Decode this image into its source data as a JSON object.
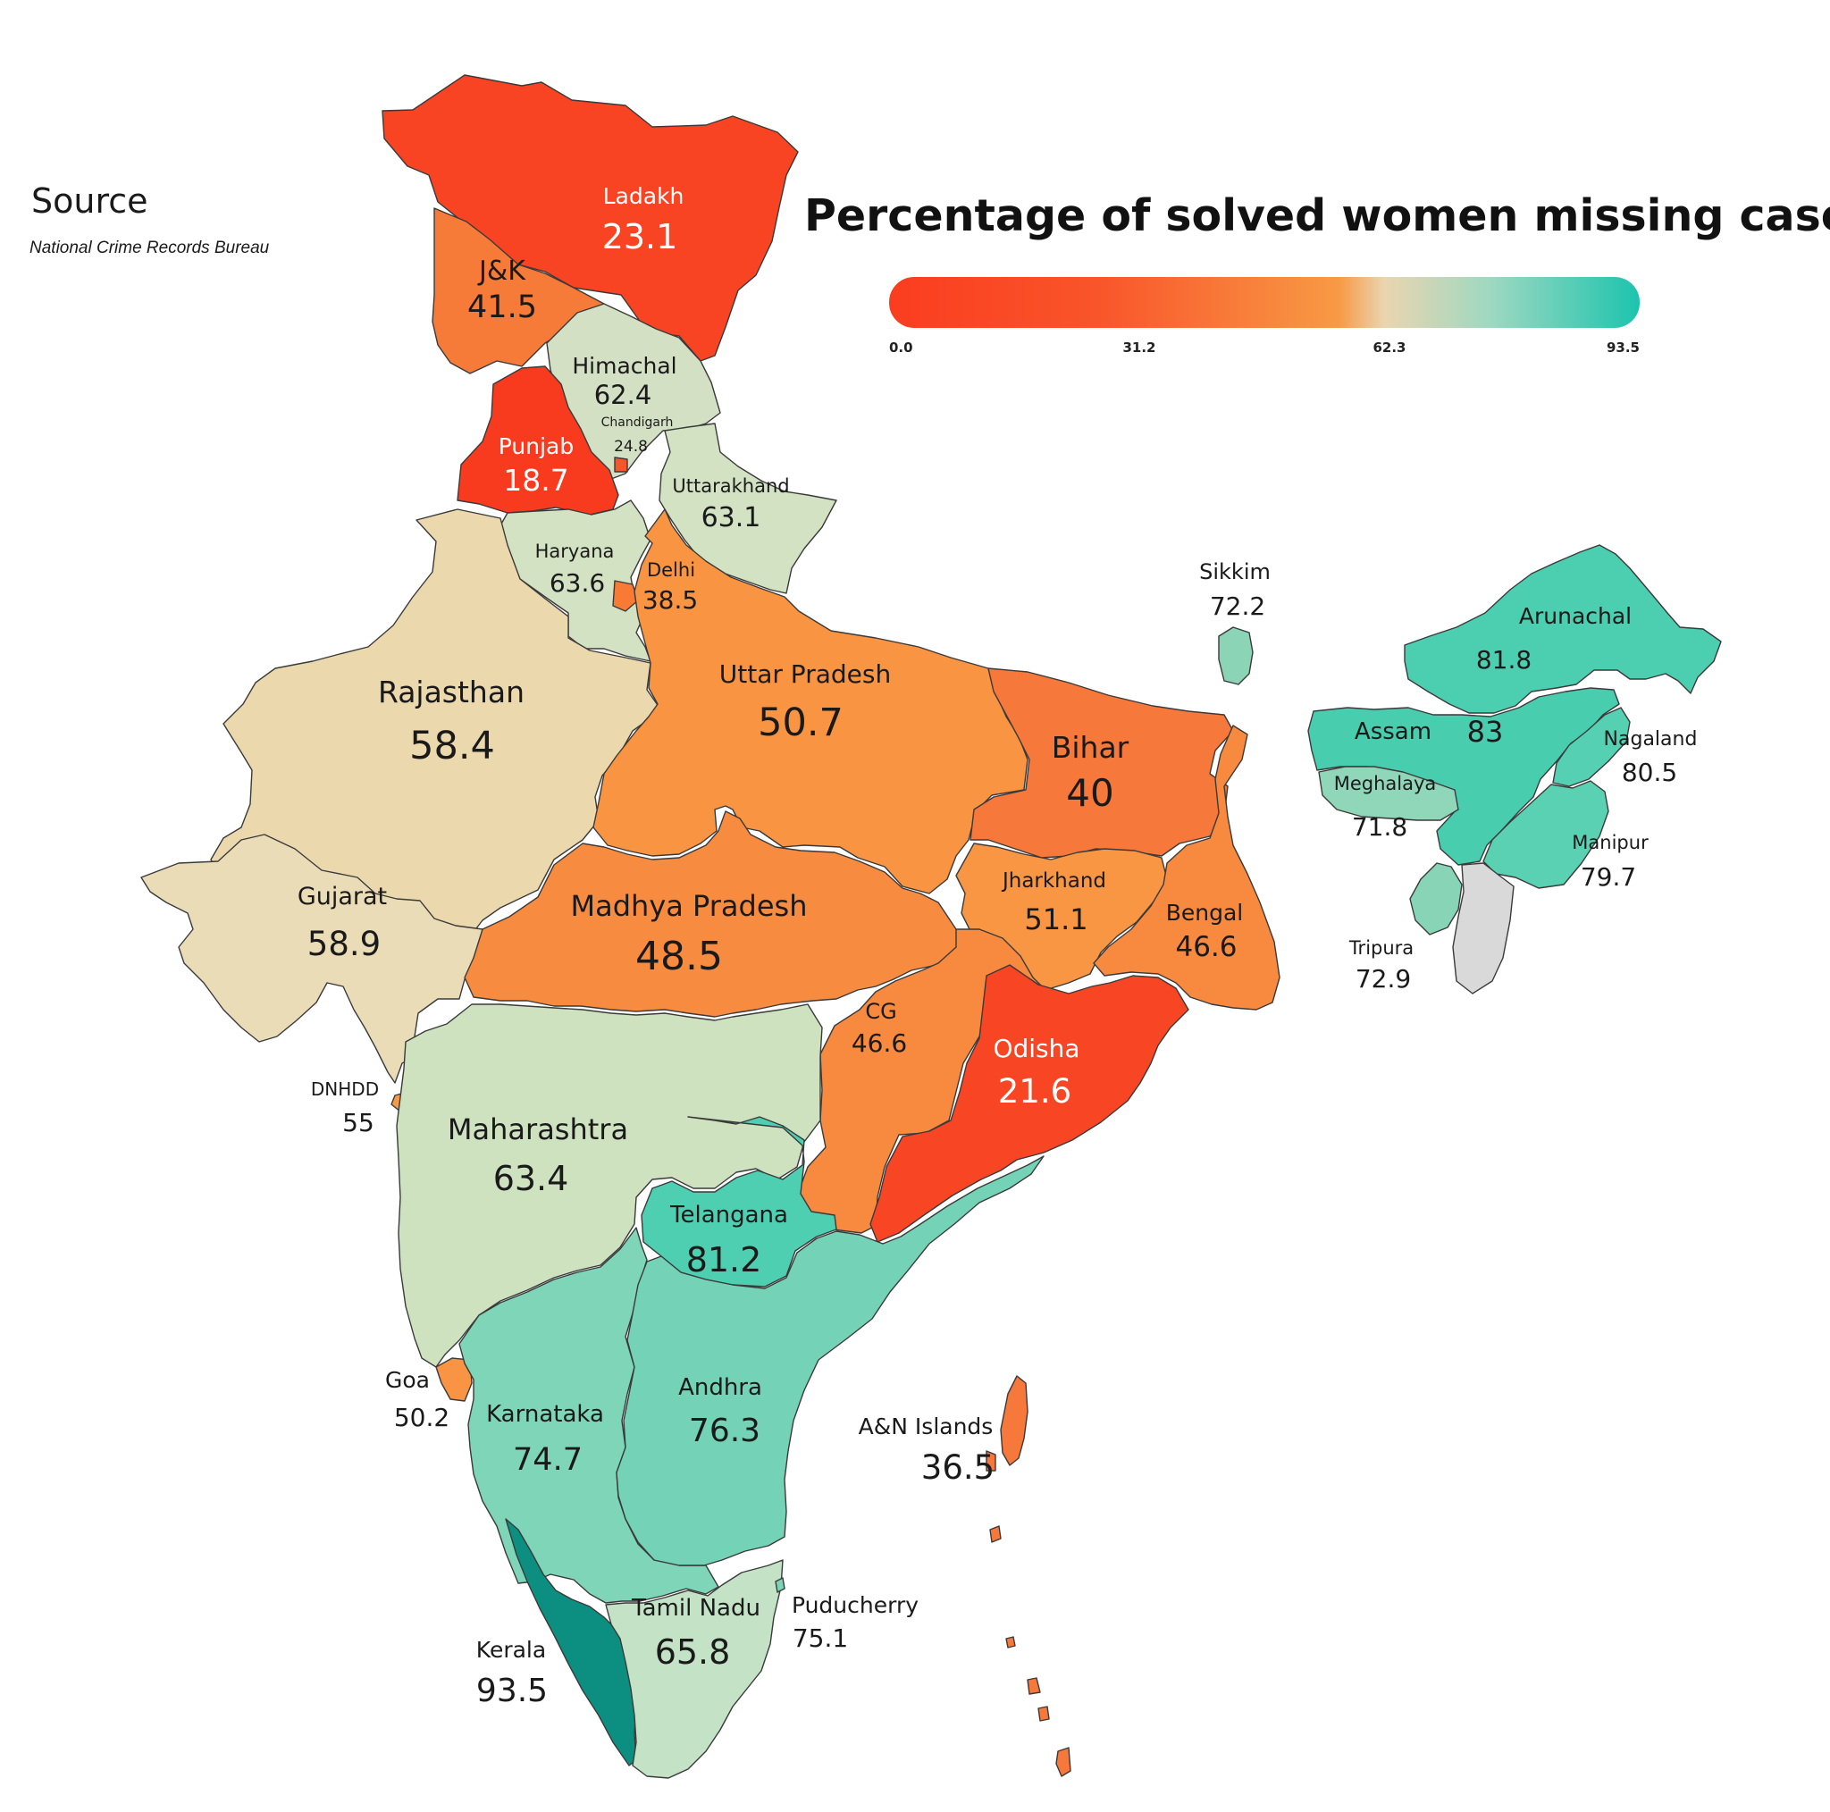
{
  "title": "Percentage of solved women missing cases",
  "source": {
    "heading": "Source",
    "name": "National Crime Records Bureau"
  },
  "legend": {
    "ticks": [
      "0.0",
      "31.2",
      "62.3",
      "93.5"
    ],
    "colors": [
      "#fa3d1f",
      "#f9552a",
      "#f89a45",
      "#ead5b0",
      "#9fd8c1",
      "#1dc4ae"
    ]
  },
  "regions": [
    {
      "name": "Ladakh",
      "value": "23.1",
      "color": "#f84423"
    },
    {
      "name": "J&K",
      "value": "41.5",
      "color": "#f67a38"
    },
    {
      "name": "Himachal",
      "value": "62.4",
      "color": "#d4e0c4"
    },
    {
      "name": "Chandigarh",
      "value": "24.8",
      "color": "#f9552a"
    },
    {
      "name": "Punjab",
      "value": "18.7",
      "color": "#f83a1e"
    },
    {
      "name": "Uttarakhand",
      "value": "63.1",
      "color": "#d2e2c2"
    },
    {
      "name": "Haryana",
      "value": "63.6",
      "color": "#d2e2c2"
    },
    {
      "name": "Delhi",
      "value": "38.5",
      "color": "#f87a35"
    },
    {
      "name": "Rajasthan",
      "value": "58.4",
      "color": "#ecd8ad"
    },
    {
      "name": "Uttar Pradesh",
      "value": "50.7",
      "color": "#f89442"
    },
    {
      "name": "Bihar",
      "value": "40",
      "color": "#f6783a"
    },
    {
      "name": "Sikkim",
      "value": "72.2",
      "color": "#8bd4b5"
    },
    {
      "name": "Arunachal",
      "value": "81.8",
      "color": "#4ccfb0"
    },
    {
      "name": "Assam",
      "value": "83",
      "color": "#48cdae"
    },
    {
      "name": "Meghalaya",
      "value": "71.8",
      "color": "#90d6b9"
    },
    {
      "name": "Nagaland",
      "value": "80.5",
      "color": "#55d0b2"
    },
    {
      "name": "Manipur",
      "value": "79.7",
      "color": "#5ad1b3"
    },
    {
      "name": "Tripura",
      "value": "72.9",
      "color": "#88d4b6"
    },
    {
      "name": "Gujarat",
      "value": "58.9",
      "color": "#ebdcb8"
    },
    {
      "name": "Madhya Pradesh",
      "value": "48.5",
      "color": "#f78c40"
    },
    {
      "name": "Jharkhand",
      "value": "51.1",
      "color": "#f89643"
    },
    {
      "name": "Bengal",
      "value": "46.6",
      "color": "#f78a3f"
    },
    {
      "name": "CG",
      "value": "46.6",
      "color": "#f78a3f"
    },
    {
      "name": "Odisha",
      "value": "21.6",
      "color": "#f84524"
    },
    {
      "name": "DNHDD",
      "value": "55",
      "color": "#f89a45"
    },
    {
      "name": "Maharashtra",
      "value": "63.4",
      "color": "#cfe2c0"
    },
    {
      "name": "Telangana",
      "value": "81.2",
      "color": "#4ecfb1"
    },
    {
      "name": "Goa",
      "value": "50.2",
      "color": "#f89443"
    },
    {
      "name": "Karnataka",
      "value": "74.7",
      "color": "#7fd5b7"
    },
    {
      "name": "Andhra",
      "value": "76.3",
      "color": "#74d3b6"
    },
    {
      "name": "A&N Islands",
      "value": "36.5",
      "color": "#f6783a"
    },
    {
      "name": "Kerala",
      "value": "93.5",
      "color": "#0c8f80"
    },
    {
      "name": "Tamil Nadu",
      "value": "65.8",
      "color": "#c4e3c6"
    },
    {
      "name": "Puducherry",
      "value": "75.1",
      "color": "#7bd4b6"
    }
  ]
}
